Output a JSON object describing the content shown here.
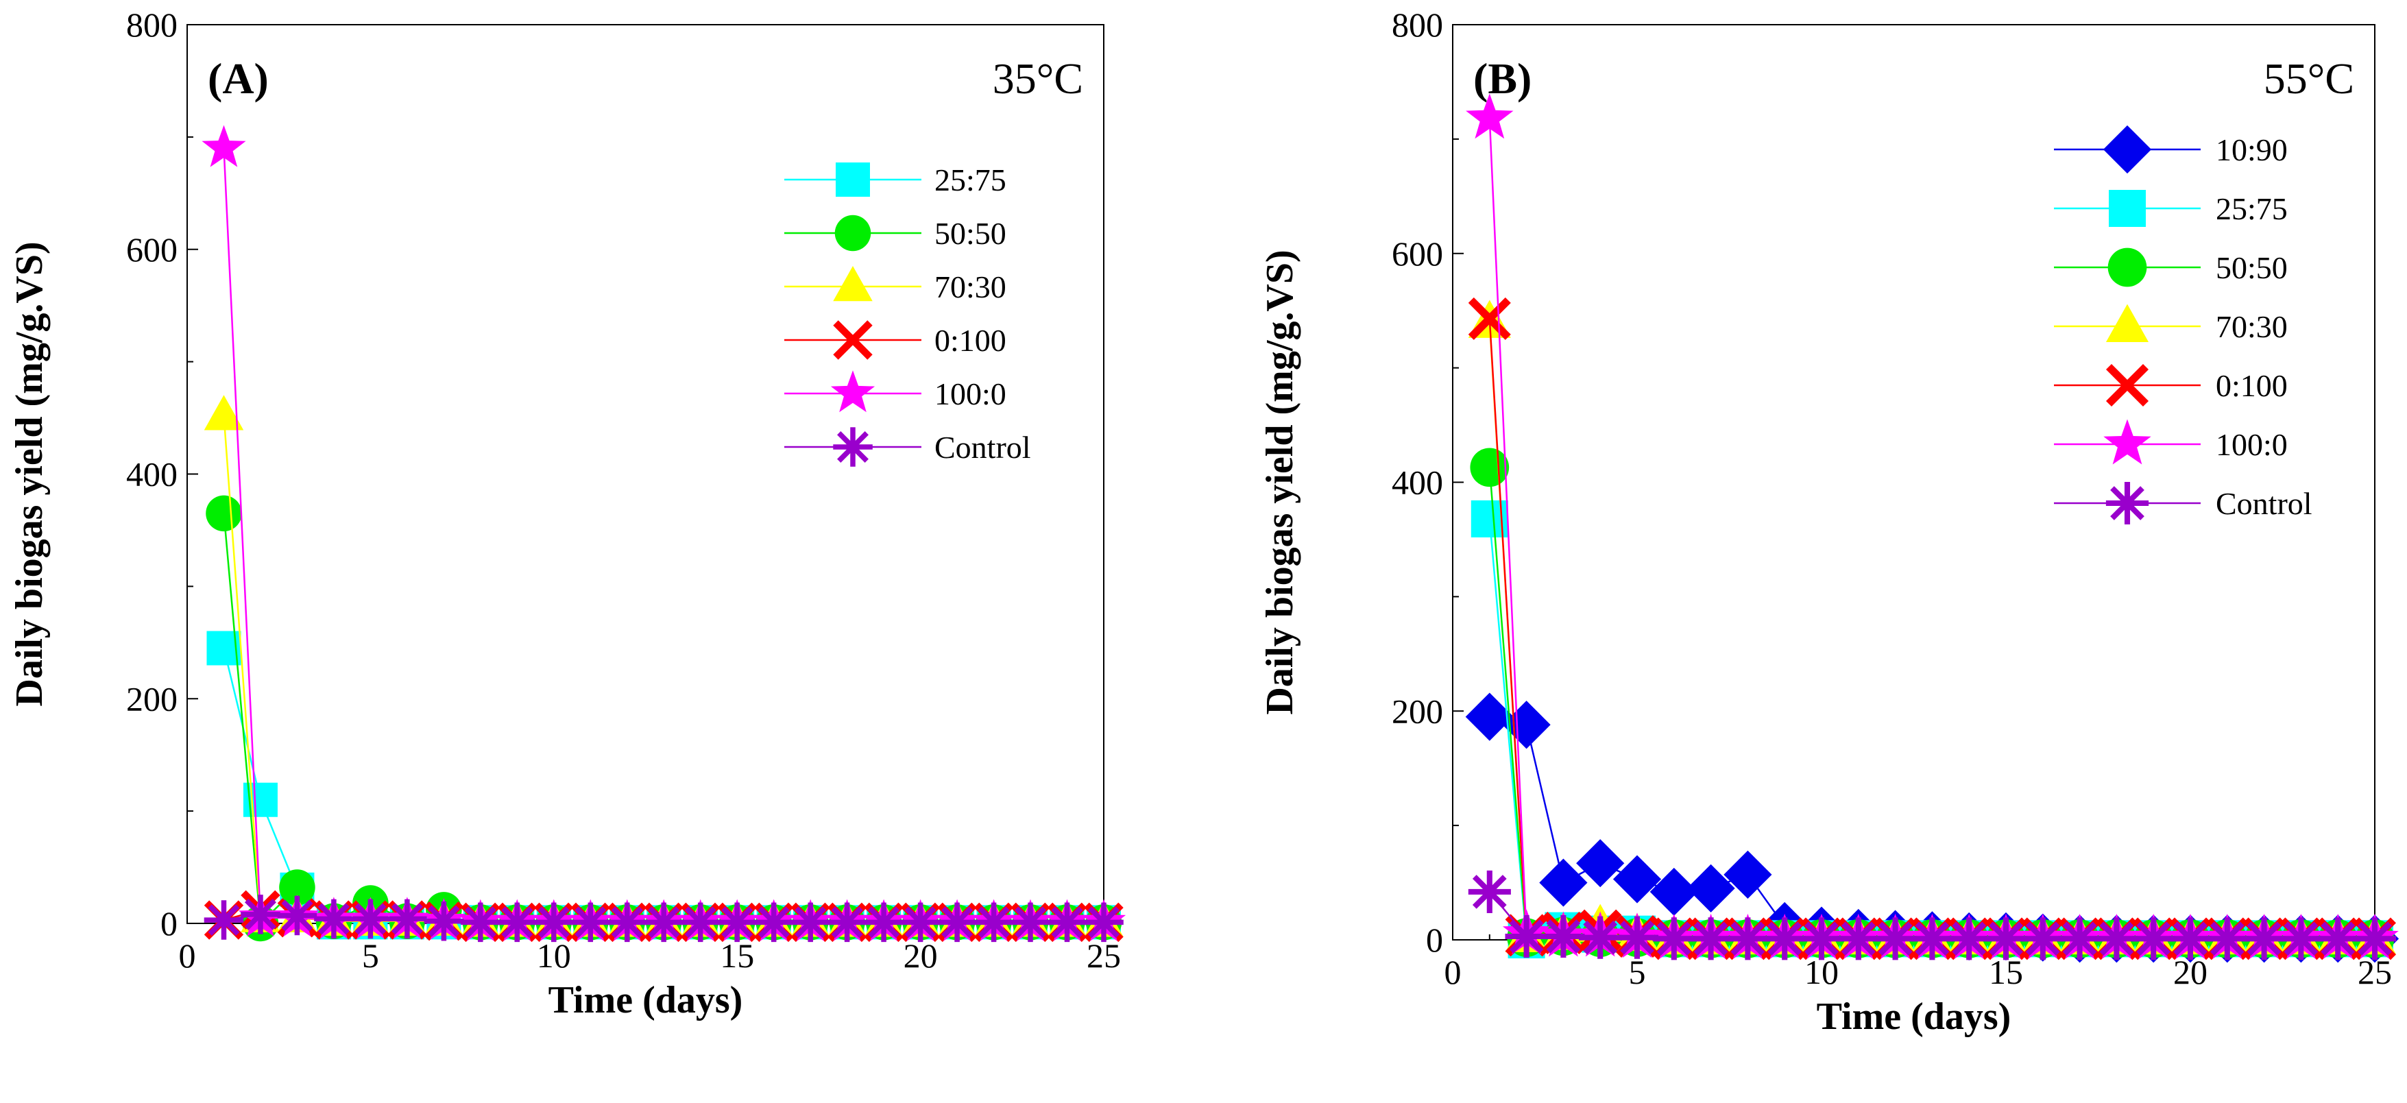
{
  "chart_data": [
    {
      "type": "line",
      "panel_label": "(A)",
      "title": "35°C",
      "xlabel": "Time (days)",
      "ylabel": "Daily biogas yield (mg/g.VS)",
      "xlim": [
        0,
        25
      ],
      "ylim": [
        0,
        800
      ],
      "xticks": [
        "0",
        "5",
        "10",
        "15",
        "20",
        "25"
      ],
      "yticks": [
        "0",
        "200",
        "400",
        "600",
        "800"
      ],
      "grid": false,
      "legend_position": "top-right",
      "series": [
        {
          "name": "25:75",
          "color": "#00FFFF",
          "marker": "square",
          "x": [
            1,
            2,
            3,
            4,
            5,
            6,
            7,
            8,
            9,
            10,
            11,
            12,
            13,
            14,
            15,
            16,
            17,
            18,
            19,
            20,
            21,
            22,
            23,
            24,
            25
          ],
          "values": [
            245,
            110,
            30,
            1,
            1,
            1,
            1,
            1,
            1,
            1,
            1,
            1,
            1,
            1,
            1,
            1,
            1,
            1,
            1,
            1,
            1,
            1,
            1,
            1,
            1
          ]
        },
        {
          "name": "50:50",
          "color": "#00EE00",
          "marker": "circle",
          "x": [
            1,
            2,
            3,
            4,
            5,
            6,
            7,
            8,
            9,
            10,
            11,
            12,
            13,
            14,
            15,
            16,
            17,
            18,
            19,
            20,
            21,
            22,
            23,
            24,
            25
          ],
          "values": [
            365,
            0,
            32,
            2,
            18,
            2,
            12,
            1,
            1,
            1,
            1,
            1,
            1,
            1,
            1,
            1,
            1,
            1,
            1,
            1,
            1,
            1,
            1,
            1,
            1
          ]
        },
        {
          "name": "70:30",
          "color": "#FFFF00",
          "marker": "triangle",
          "x": [
            1,
            2,
            3,
            4,
            5,
            6,
            7,
            8,
            9,
            10,
            11,
            12,
            13,
            14,
            15,
            16,
            17,
            18,
            19,
            20,
            21,
            22,
            23,
            24,
            25
          ],
          "values": [
            452,
            5,
            5,
            2,
            2,
            2,
            2,
            1,
            1,
            1,
            1,
            1,
            1,
            1,
            1,
            1,
            1,
            1,
            1,
            1,
            1,
            1,
            1,
            1,
            1
          ]
        },
        {
          "name": "0:100",
          "color": "#FF0000",
          "marker": "x",
          "x": [
            1,
            2,
            3,
            4,
            5,
            6,
            7,
            8,
            9,
            10,
            11,
            12,
            13,
            14,
            15,
            16,
            17,
            18,
            19,
            20,
            21,
            22,
            23,
            24,
            25
          ],
          "values": [
            3,
            12,
            5,
            3,
            3,
            3,
            2,
            1,
            1,
            1,
            1,
            1,
            1,
            1,
            1,
            1,
            1,
            1,
            1,
            1,
            1,
            1,
            1,
            1,
            1
          ]
        },
        {
          "name": "100:0",
          "color": "#FF00FF",
          "marker": "star",
          "x": [
            1,
            2,
            3,
            4,
            5,
            6,
            7,
            8,
            9,
            10,
            11,
            12,
            13,
            14,
            15,
            16,
            17,
            18,
            19,
            20,
            21,
            22,
            23,
            24,
            25
          ],
          "values": [
            690,
            5,
            5,
            3,
            3,
            3,
            2,
            1,
            1,
            1,
            1,
            1,
            1,
            1,
            1,
            1,
            1,
            1,
            1,
            1,
            1,
            1,
            1,
            1,
            1
          ]
        },
        {
          "name": "Control",
          "color": "#9900CC",
          "marker": "asterisk",
          "x": [
            1,
            2,
            3,
            4,
            5,
            6,
            7,
            8,
            9,
            10,
            11,
            12,
            13,
            14,
            15,
            16,
            17,
            18,
            19,
            20,
            21,
            22,
            23,
            24,
            25
          ],
          "values": [
            3,
            8,
            7,
            4,
            4,
            4,
            2,
            1,
            1,
            1,
            1,
            1,
            1,
            1,
            1,
            1,
            1,
            1,
            1,
            1,
            1,
            1,
            1,
            1,
            1
          ]
        }
      ]
    },
    {
      "type": "line",
      "panel_label": "(B)",
      "title": "55°C",
      "xlabel": "Time (days)",
      "ylabel": "Daily biogas yield (mg/g.VS)",
      "xlim": [
        0,
        25
      ],
      "ylim": [
        0,
        800
      ],
      "xticks": [
        "0",
        "5",
        "10",
        "15",
        "20",
        "25"
      ],
      "yticks": [
        "0",
        "200",
        "400",
        "600",
        "800"
      ],
      "grid": false,
      "legend_position": "top-right",
      "series": [
        {
          "name": "10:90",
          "color": "#0000EE",
          "marker": "diamond",
          "x": [
            1,
            2,
            3,
            4,
            5,
            6,
            7,
            8,
            9,
            10,
            11,
            12,
            13,
            14,
            15,
            16,
            17,
            18,
            19,
            20,
            21,
            22,
            23,
            24,
            25
          ],
          "values": [
            195,
            188,
            50,
            67,
            53,
            42,
            45,
            57,
            12,
            8,
            6,
            5,
            4,
            3,
            3,
            2,
            1,
            1,
            1,
            1,
            1,
            1,
            1,
            1,
            1
          ]
        },
        {
          "name": "25:75",
          "color": "#00FFFF",
          "marker": "square",
          "x": [
            1,
            2,
            3,
            4,
            5,
            6,
            7,
            8,
            9,
            10,
            11,
            12,
            13,
            14,
            15,
            16,
            17,
            18,
            19,
            20,
            21,
            22,
            23,
            24,
            25
          ],
          "values": [
            368,
            0,
            8,
            5,
            5,
            1,
            1,
            1,
            1,
            1,
            1,
            1,
            1,
            1,
            1,
            1,
            1,
            1,
            1,
            1,
            1,
            1,
            1,
            1,
            1
          ]
        },
        {
          "name": "50:50",
          "color": "#00EE00",
          "marker": "circle",
          "x": [
            1,
            2,
            3,
            4,
            5,
            6,
            7,
            8,
            9,
            10,
            11,
            12,
            13,
            14,
            15,
            16,
            17,
            18,
            19,
            20,
            21,
            22,
            23,
            24,
            25
          ],
          "values": [
            413,
            2,
            3,
            2,
            2,
            1,
            1,
            1,
            1,
            1,
            1,
            1,
            1,
            1,
            1,
            1,
            1,
            1,
            1,
            1,
            1,
            1,
            1,
            1,
            1
          ]
        },
        {
          "name": "70:30",
          "color": "#FFFF00",
          "marker": "triangle",
          "x": [
            1,
            2,
            3,
            4,
            5,
            6,
            7,
            8,
            9,
            10,
            11,
            12,
            13,
            14,
            15,
            16,
            17,
            18,
            19,
            20,
            21,
            22,
            23,
            24,
            25
          ],
          "values": [
            540,
            3,
            5,
            12,
            4,
            1,
            1,
            1,
            1,
            1,
            1,
            1,
            1,
            1,
            1,
            1,
            1,
            1,
            1,
            1,
            1,
            1,
            1,
            1,
            1
          ]
        },
        {
          "name": "0:100",
          "color": "#FF0000",
          "marker": "x",
          "x": [
            1,
            2,
            3,
            4,
            5,
            6,
            7,
            8,
            9,
            10,
            11,
            12,
            13,
            14,
            15,
            16,
            17,
            18,
            19,
            20,
            21,
            22,
            23,
            24,
            25
          ],
          "values": [
            543,
            4,
            6,
            8,
            3,
            1,
            1,
            1,
            1,
            1,
            1,
            1,
            1,
            1,
            1,
            1,
            1,
            1,
            1,
            1,
            1,
            1,
            1,
            1,
            1
          ]
        },
        {
          "name": "100:0",
          "color": "#FF00FF",
          "marker": "star",
          "x": [
            1,
            2,
            3,
            4,
            5,
            6,
            7,
            8,
            9,
            10,
            11,
            12,
            13,
            14,
            15,
            16,
            17,
            18,
            19,
            20,
            21,
            22,
            23,
            24,
            25
          ],
          "values": [
            718,
            5,
            3,
            3,
            2,
            1,
            1,
            1,
            1,
            1,
            1,
            1,
            1,
            1,
            1,
            1,
            1,
            1,
            1,
            1,
            1,
            1,
            1,
            1,
            1
          ]
        },
        {
          "name": "Control",
          "color": "#9900CC",
          "marker": "asterisk",
          "x": [
            1,
            2,
            3,
            4,
            5,
            6,
            7,
            8,
            9,
            10,
            11,
            12,
            13,
            14,
            15,
            16,
            17,
            18,
            19,
            20,
            21,
            22,
            23,
            24,
            25
          ],
          "values": [
            42,
            3,
            3,
            2,
            2,
            1,
            1,
            1,
            1,
            1,
            1,
            1,
            1,
            1,
            1,
            1,
            1,
            1,
            1,
            1,
            1,
            1,
            1,
            1,
            1
          ]
        }
      ]
    }
  ]
}
